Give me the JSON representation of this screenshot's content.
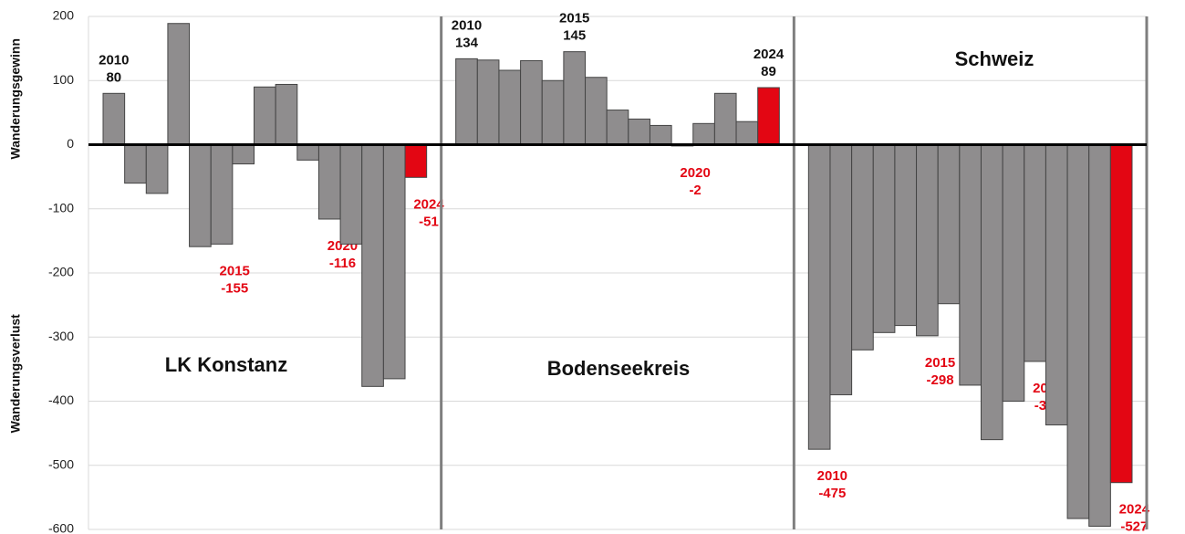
{
  "chart_data": [
    {
      "type": "bar",
      "title": "LK Konstanz",
      "categories": [
        "2010",
        null,
        null,
        null,
        null,
        "2015",
        null,
        null,
        null,
        null,
        "2020",
        null,
        null,
        null,
        "2024"
      ],
      "values": [
        80,
        -60,
        -76,
        189,
        -159,
        -155,
        -30,
        90,
        94,
        -24,
        -116,
        -155,
        -377,
        -365,
        -51
      ],
      "colors": [
        "#8f8d8e",
        "#8f8d8e",
        "#8f8d8e",
        "#8f8d8e",
        "#8f8d8e",
        "#8f8d8e",
        "#8f8d8e",
        "#8f8d8e",
        "#8f8d8e",
        "#8f8d8e",
        "#8f8d8e",
        "#8f8d8e",
        "#8f8d8e",
        "#8f8d8e",
        "#e30613"
      ],
      "ylim": [
        -600,
        200
      ],
      "yticks": [
        -600,
        -500,
        -400,
        -300,
        -200,
        -100,
        0,
        100,
        200
      ],
      "grid": true,
      "y_labels": [
        "Wanderungsgewinn",
        "Wanderungsverlust"
      ]
    },
    {
      "type": "bar",
      "title": "Bodenseekreis",
      "categories": [
        "2010",
        null,
        null,
        null,
        null,
        "2015",
        null,
        null,
        null,
        null,
        "2020",
        null,
        null,
        null,
        "2024"
      ],
      "values": [
        134,
        132,
        116,
        131,
        100,
        145,
        105,
        54,
        40,
        30,
        -2,
        33,
        80,
        36,
        89
      ],
      "colors": [
        "#8f8d8e",
        "#8f8d8e",
        "#8f8d8e",
        "#8f8d8e",
        "#8f8d8e",
        "#8f8d8e",
        "#8f8d8e",
        "#8f8d8e",
        "#8f8d8e",
        "#8f8d8e",
        "#8f8d8e",
        "#8f8d8e",
        "#8f8d8e",
        "#8f8d8e",
        "#e30613"
      ]
    },
    {
      "type": "bar",
      "title": "Schweiz",
      "categories": [
        "2010",
        null,
        null,
        null,
        null,
        "2015",
        null,
        null,
        null,
        null,
        "2020",
        null,
        null,
        null,
        "2024"
      ],
      "values": [
        -475,
        -390,
        -320,
        -293,
        -282,
        -298,
        -248,
        -375,
        -460,
        -400,
        -338,
        -437,
        -583,
        -595,
        -527
      ],
      "colors": [
        "#8f8d8e",
        "#8f8d8e",
        "#8f8d8e",
        "#8f8d8e",
        "#8f8d8e",
        "#8f8d8e",
        "#8f8d8e",
        "#8f8d8e",
        "#8f8d8e",
        "#8f8d8e",
        "#8f8d8e",
        "#8f8d8e",
        "#8f8d8e",
        "#8f8d8e",
        "#e30613"
      ]
    }
  ]
}
